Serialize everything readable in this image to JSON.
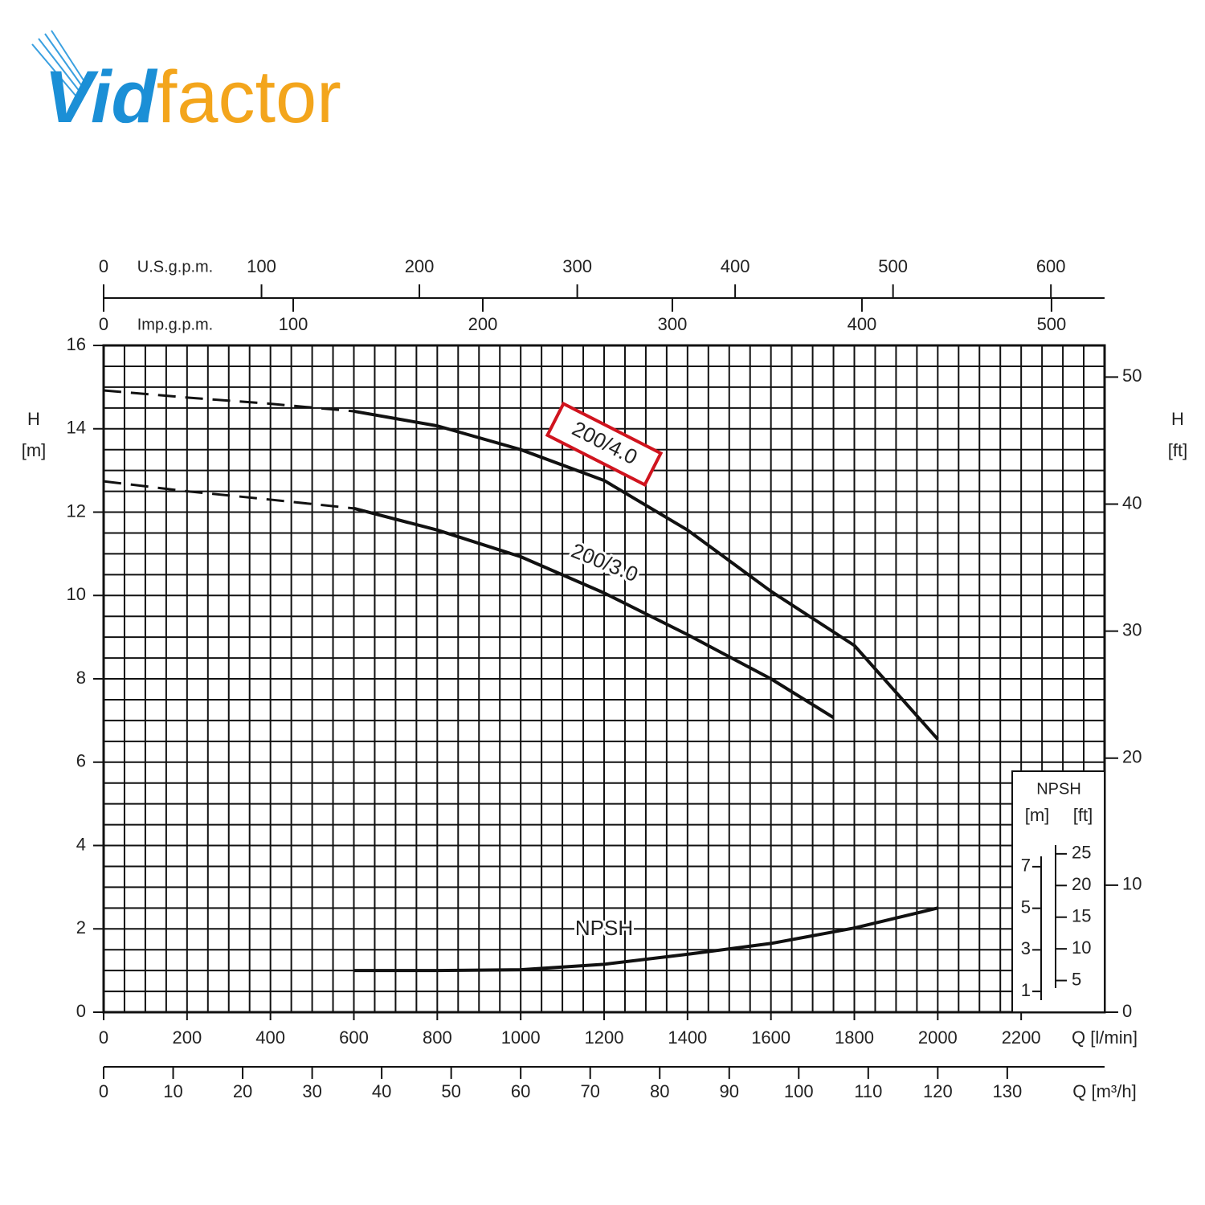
{
  "logo": {
    "part1": "Vid",
    "part2": "factor"
  },
  "chart_data": {
    "type": "line",
    "y_label": "H",
    "y_unit": "[m]",
    "y2_label": "H",
    "y2_unit": "[ft]",
    "x_label": "Q [l/min]",
    "xlim": [
      0,
      2400
    ],
    "xticks": [
      0,
      200,
      400,
      600,
      800,
      1000,
      1200,
      1400,
      1600,
      1800,
      2000,
      2200
    ],
    "ylim": [
      0,
      16
    ],
    "yticks": [
      0,
      2,
      4,
      6,
      8,
      10,
      12,
      14,
      16
    ],
    "y2lim": [
      0,
      52.49
    ],
    "y2ticks": [
      0,
      10,
      20,
      30,
      40,
      50
    ],
    "grid": true,
    "x_minor_ticks": [
      0,
      50,
      100,
      150,
      200,
      250,
      300,
      350,
      400,
      450,
      500,
      550,
      600,
      650,
      700,
      750,
      800,
      850,
      900,
      950,
      1000,
      1050,
      1100,
      1150,
      1200,
      1250,
      1300,
      1350,
      1400,
      1450,
      1500,
      1550,
      1600,
      1650,
      1700,
      1750,
      1800,
      1850,
      1900,
      1950,
      2000,
      2050,
      2100,
      2150,
      2200,
      2250,
      2300,
      2350,
      2400
    ],
    "y_minor_ticks": [
      0,
      0.5,
      1,
      1.5,
      2,
      2.5,
      3,
      3.5,
      4,
      4.5,
      5,
      5.5,
      6,
      6.5,
      7,
      7.5,
      8,
      8.5,
      9,
      9.5,
      10,
      10.5,
      11,
      11.5,
      12,
      12.5,
      13,
      13.5,
      14,
      14.5,
      15,
      15.5,
      16
    ],
    "top_axes": [
      {
        "label": "U.S.g.p.m.",
        "lim": [
          0,
          634
        ],
        "ticks": [
          0,
          100,
          200,
          300,
          400,
          500,
          600
        ]
      },
      {
        "label": "Imp.g.p.m.",
        "lim": [
          0,
          528
        ],
        "ticks": [
          0,
          100,
          200,
          300,
          400,
          500
        ]
      }
    ],
    "bottom_axis": {
      "label": "Q [m³/h]",
      "lim": [
        0,
        144
      ],
      "ticks": [
        0,
        10,
        20,
        30,
        40,
        50,
        60,
        70,
        80,
        90,
        100,
        110,
        120,
        130
      ]
    },
    "series": [
      {
        "name": "200/4.0",
        "color": "#111111",
        "highlight_color": "#d0141e",
        "x": [
          600,
          800,
          1000,
          1200,
          1400,
          1600,
          1800,
          2000
        ],
        "values": [
          14.42,
          14.07,
          13.5,
          12.76,
          11.57,
          10.1,
          8.8,
          6.55
        ],
        "extrapolated": {
          "x": [
            0,
            200,
            400,
            600
          ],
          "values": [
            14.92,
            14.75,
            14.6,
            14.42
          ]
        }
      },
      {
        "name": "200/3.0",
        "color": "#111111",
        "x": [
          600,
          800,
          1000,
          1200,
          1400,
          1600,
          1750
        ],
        "values": [
          12.09,
          11.57,
          10.93,
          10.06,
          9.06,
          8.0,
          7.07
        ],
        "extrapolated": {
          "x": [
            0,
            200,
            400,
            600
          ],
          "values": [
            12.74,
            12.5,
            12.3,
            12.09
          ]
        }
      },
      {
        "name": "NPSH",
        "color": "#111111",
        "x": [
          600,
          800,
          1000,
          1200,
          1400,
          1600,
          1800,
          2000
        ],
        "values": [
          1.0,
          1.0,
          1.02,
          1.15,
          1.39,
          1.65,
          2.02,
          2.5
        ]
      }
    ],
    "npsh_inset": {
      "title": "NPSH",
      "m_unit": "[m]",
      "ft_unit": "[ft]",
      "m_lim": [
        0,
        8
      ],
      "m_ticks": [
        1,
        3,
        5,
        7
      ],
      "ft_lim": [
        0,
        26.25
      ],
      "ft_ticks": [
        5,
        10,
        15,
        20,
        25
      ]
    }
  }
}
